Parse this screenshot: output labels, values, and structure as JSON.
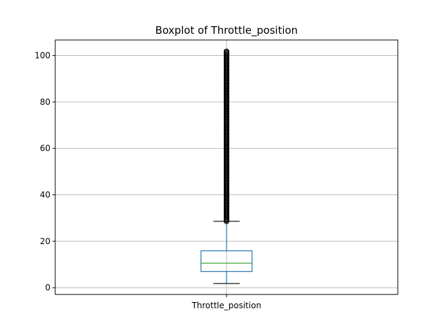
{
  "chart_data": {
    "type": "boxplot",
    "title": "Boxplot of Throttle_position",
    "xlabel": "",
    "ylabel": "",
    "categories": [
      "Throttle_position"
    ],
    "ylim": [
      -2.9,
      106.7
    ],
    "yticks": [
      0,
      20,
      40,
      60,
      80,
      100
    ],
    "grid": true,
    "boxes": [
      {
        "name": "Throttle_position",
        "whisker_low": 1.8,
        "q1": 7.0,
        "median": 10.6,
        "q3": 15.9,
        "whisker_high": 28.6,
        "flier_range": [
          28.6,
          101.8
        ]
      }
    ],
    "colors": {
      "box": "#1f77b4",
      "median": "#2ca02c",
      "cap": "#000000",
      "flier": "#000000",
      "grid": "#b0b0b0"
    }
  }
}
